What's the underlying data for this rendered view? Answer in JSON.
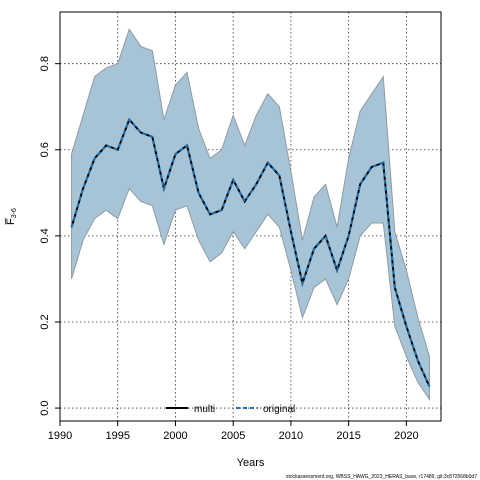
{
  "chart_data": {
    "type": "line",
    "xlabel": "Years",
    "ylabel": "F̅",
    "ylabel_sub": "3-6",
    "xlim": [
      1990,
      2023
    ],
    "ylim": [
      -0.03,
      0.92
    ],
    "xticks": [
      1990,
      1995,
      2000,
      2005,
      2010,
      2015,
      2020
    ],
    "yticks": [
      0.0,
      0.2,
      0.4,
      0.6,
      0.8
    ],
    "ytick_labels": [
      "0.0",
      "0.2",
      "0.4",
      "0.6",
      "0.8"
    ],
    "grid": true,
    "legend_position": "bottom-center",
    "band_color": "#a6c4d6",
    "years": [
      1991,
      1992,
      1993,
      1994,
      1995,
      1996,
      1997,
      1998,
      1999,
      2000,
      2001,
      2002,
      2003,
      2004,
      2005,
      2006,
      2007,
      2008,
      2009,
      2010,
      2011,
      2012,
      2013,
      2014,
      2015,
      2016,
      2017,
      2018,
      2019,
      2020,
      2021,
      2022
    ],
    "band_upper": [
      0.59,
      0.68,
      0.77,
      0.79,
      0.8,
      0.88,
      0.84,
      0.83,
      0.67,
      0.75,
      0.78,
      0.65,
      0.58,
      0.6,
      0.68,
      0.61,
      0.68,
      0.73,
      0.7,
      0.55,
      0.39,
      0.49,
      0.52,
      0.42,
      0.58,
      0.69,
      0.73,
      0.77,
      0.41,
      0.32,
      0.21,
      0.12
    ],
    "band_lower": [
      0.3,
      0.39,
      0.44,
      0.46,
      0.44,
      0.51,
      0.48,
      0.47,
      0.38,
      0.46,
      0.47,
      0.39,
      0.34,
      0.36,
      0.41,
      0.37,
      0.41,
      0.45,
      0.42,
      0.32,
      0.21,
      0.28,
      0.3,
      0.24,
      0.3,
      0.4,
      0.43,
      0.43,
      0.19,
      0.12,
      0.06,
      0.02
    ],
    "series": [
      {
        "name": "multi",
        "style": "solid",
        "color": "#000000",
        "values": [
          0.42,
          0.51,
          0.58,
          0.61,
          0.6,
          0.67,
          0.64,
          0.63,
          0.51,
          0.59,
          0.61,
          0.5,
          0.45,
          0.46,
          0.53,
          0.48,
          0.52,
          0.57,
          0.54,
          0.41,
          0.29,
          0.37,
          0.4,
          0.32,
          0.4,
          0.52,
          0.56,
          0.57,
          0.28,
          0.19,
          0.11,
          0.05
        ]
      },
      {
        "name": "original",
        "style": "dashed",
        "color": "#1a73b4",
        "values": [
          0.42,
          0.51,
          0.58,
          0.61,
          0.6,
          0.67,
          0.64,
          0.63,
          0.51,
          0.59,
          0.61,
          0.5,
          0.45,
          0.46,
          0.53,
          0.48,
          0.52,
          0.57,
          0.54,
          0.41,
          0.29,
          0.37,
          0.4,
          0.32,
          0.4,
          0.52,
          0.56,
          0.57,
          0.28,
          0.19,
          0.11,
          0.05
        ]
      }
    ]
  },
  "footer": "stockassessment.org, WBSS_HAWG_2023_HERAS_base, r17489, git:3c872568b0d7"
}
